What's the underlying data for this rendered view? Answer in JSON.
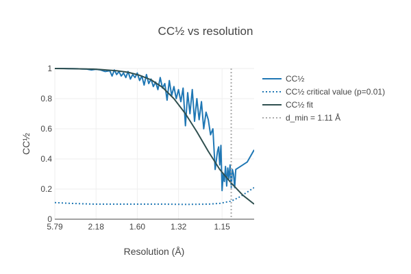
{
  "chart_data": {
    "type": "line",
    "title": "CC½ vs resolution",
    "xlabel": "Resolution (Å)",
    "ylabel": "CC½",
    "x_tick_labels": [
      "5.79",
      "2.18",
      "1.60",
      "1.32",
      "1.15"
    ],
    "x_tick_values": [
      0.03,
      0.21,
      0.39,
      0.57,
      0.76
    ],
    "xlim": [
      0.03,
      0.9
    ],
    "ylim": [
      0,
      1
    ],
    "y_ticks": [
      0,
      0.2,
      0.4,
      0.6,
      0.8,
      1
    ],
    "y_tick_labels": [
      "0",
      "0.2",
      "0.4",
      "0.6",
      "0.8",
      "1"
    ],
    "grid": true,
    "legend_position": "right",
    "colors": {
      "cc_half": "#1f77b4",
      "fit": "#2f4f4f",
      "d_min": "#aaaaaa"
    },
    "series": [
      {
        "name": "CC½",
        "style": "solid",
        "color": "#1f77b4",
        "x": [
          0.03,
          0.05,
          0.07,
          0.09,
          0.11,
          0.13,
          0.15,
          0.17,
          0.19,
          0.21,
          0.23,
          0.25,
          0.27,
          0.28,
          0.29,
          0.3,
          0.31,
          0.32,
          0.33,
          0.34,
          0.35,
          0.36,
          0.37,
          0.38,
          0.39,
          0.4,
          0.41,
          0.42,
          0.43,
          0.44,
          0.45,
          0.46,
          0.47,
          0.48,
          0.49,
          0.5,
          0.51,
          0.52,
          0.53,
          0.54,
          0.55,
          0.56,
          0.57,
          0.58,
          0.59,
          0.6,
          0.61,
          0.62,
          0.63,
          0.64,
          0.65,
          0.66,
          0.67,
          0.68,
          0.69,
          0.7,
          0.71,
          0.72,
          0.73,
          0.74,
          0.745,
          0.75,
          0.755,
          0.76,
          0.765,
          0.77,
          0.775,
          0.78,
          0.785,
          0.79,
          0.795,
          0.8,
          0.805,
          0.81,
          0.815,
          0.82,
          0.83,
          0.87,
          0.9
        ],
        "y": [
          1.0,
          1.0,
          1.0,
          0.999,
          0.999,
          0.998,
          0.997,
          0.996,
          0.99,
          0.995,
          0.99,
          0.98,
          0.985,
          0.95,
          0.99,
          0.96,
          0.98,
          0.95,
          0.97,
          0.94,
          0.98,
          0.93,
          0.96,
          0.94,
          0.97,
          0.92,
          0.95,
          0.89,
          0.96,
          0.9,
          0.93,
          0.88,
          0.91,
          0.86,
          0.94,
          0.87,
          0.9,
          0.79,
          0.92,
          0.82,
          0.88,
          0.8,
          0.86,
          0.78,
          0.87,
          0.62,
          0.84,
          0.7,
          0.86,
          0.65,
          0.8,
          0.66,
          0.78,
          0.6,
          0.71,
          0.66,
          0.56,
          0.6,
          0.33,
          0.45,
          0.48,
          0.36,
          0.49,
          0.19,
          0.3,
          0.25,
          0.35,
          0.22,
          0.34,
          0.27,
          0.36,
          0.21,
          0.33,
          0.3,
          0.21,
          0.33,
          0.34,
          0.38,
          0.46
        ]
      },
      {
        "name": "CC½ critical value (p=0.01)",
        "style": "dot",
        "color": "#1f77b4",
        "x": [
          0.03,
          0.1,
          0.2,
          0.3,
          0.4,
          0.5,
          0.6,
          0.7,
          0.75,
          0.8,
          0.84,
          0.87,
          0.9
        ],
        "y": [
          0.11,
          0.105,
          0.1,
          0.1,
          0.1,
          0.1,
          0.098,
          0.1,
          0.105,
          0.12,
          0.15,
          0.18,
          0.21
        ]
      },
      {
        "name": "CC½ fit",
        "style": "solid",
        "color": "#2f4f4f",
        "x": [
          0.03,
          0.1,
          0.2,
          0.3,
          0.35,
          0.4,
          0.45,
          0.5,
          0.55,
          0.6,
          0.65,
          0.7,
          0.75,
          0.8,
          0.85,
          0.9
        ],
        "y": [
          1.0,
          0.999,
          0.996,
          0.985,
          0.975,
          0.955,
          0.925,
          0.875,
          0.8,
          0.7,
          0.58,
          0.45,
          0.33,
          0.24,
          0.16,
          0.1
        ]
      }
    ],
    "vertical_line": {
      "name": "d_min = 1.11 Å",
      "x": 0.8,
      "style": "dot",
      "color": "#aaaaaa"
    }
  }
}
